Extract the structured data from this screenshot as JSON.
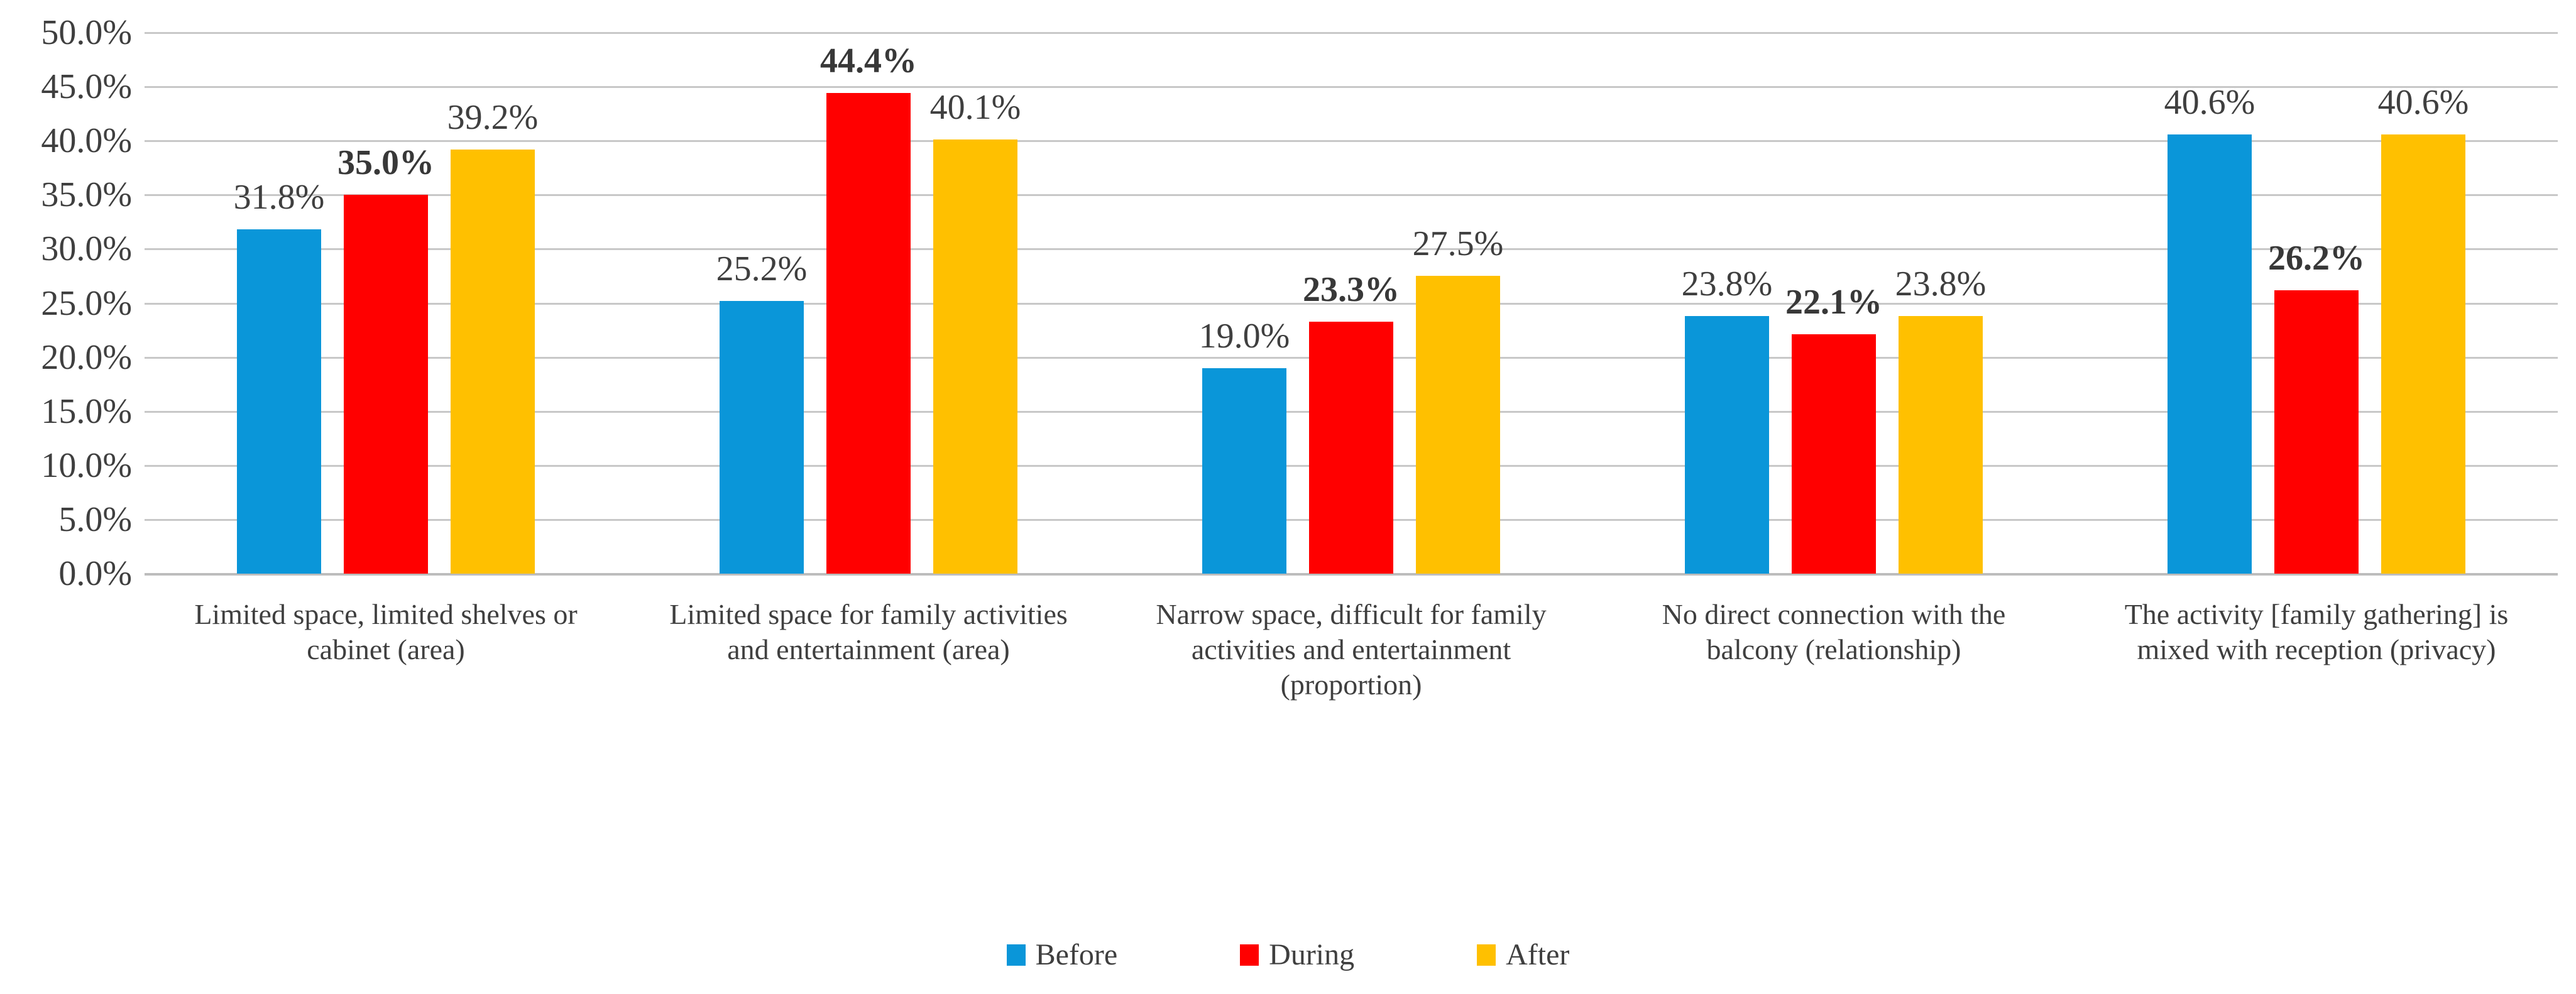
{
  "chart_data": {
    "type": "bar",
    "title": "",
    "xlabel": "",
    "ylabel": "",
    "categories": [
      "Limited space, limited shelves or\ncabinet (area)",
      "Limited space for family activities\nand entertainment (area)",
      "Narrow space, difficult for family\nactivities and entertainment\n(proportion)",
      "No direct connection with the\nbalcony (relationship)",
      "The activity [family gathering] is\nmixed with reception (privacy)"
    ],
    "series": [
      {
        "name": "Before",
        "color": "#0a96d9",
        "label_bold": false,
        "values": [
          31.8,
          25.2,
          19.0,
          23.8,
          40.6
        ]
      },
      {
        "name": "During",
        "color": "#ff0000",
        "label_bold": true,
        "values": [
          35.0,
          44.4,
          23.3,
          22.1,
          26.2
        ]
      },
      {
        "name": "After",
        "color": "#ffc000",
        "label_bold": false,
        "values": [
          39.2,
          40.1,
          27.5,
          23.8,
          40.6
        ]
      }
    ],
    "data_label_format": "0.0%",
    "y_axis": {
      "min": 0,
      "max": 50,
      "step": 5,
      "tick_labels": [
        "0.0%",
        "5.0%",
        "10.0%",
        "15.0%",
        "20.0%",
        "25.0%",
        "30.0%",
        "35.0%",
        "40.0%",
        "45.0%",
        "50.0%"
      ]
    },
    "ylim": [
      0,
      50
    ],
    "grid": true,
    "gridline_color": "#c8c8c8",
    "text_color": "#3f3f3f",
    "legend_position": "bottom"
  }
}
